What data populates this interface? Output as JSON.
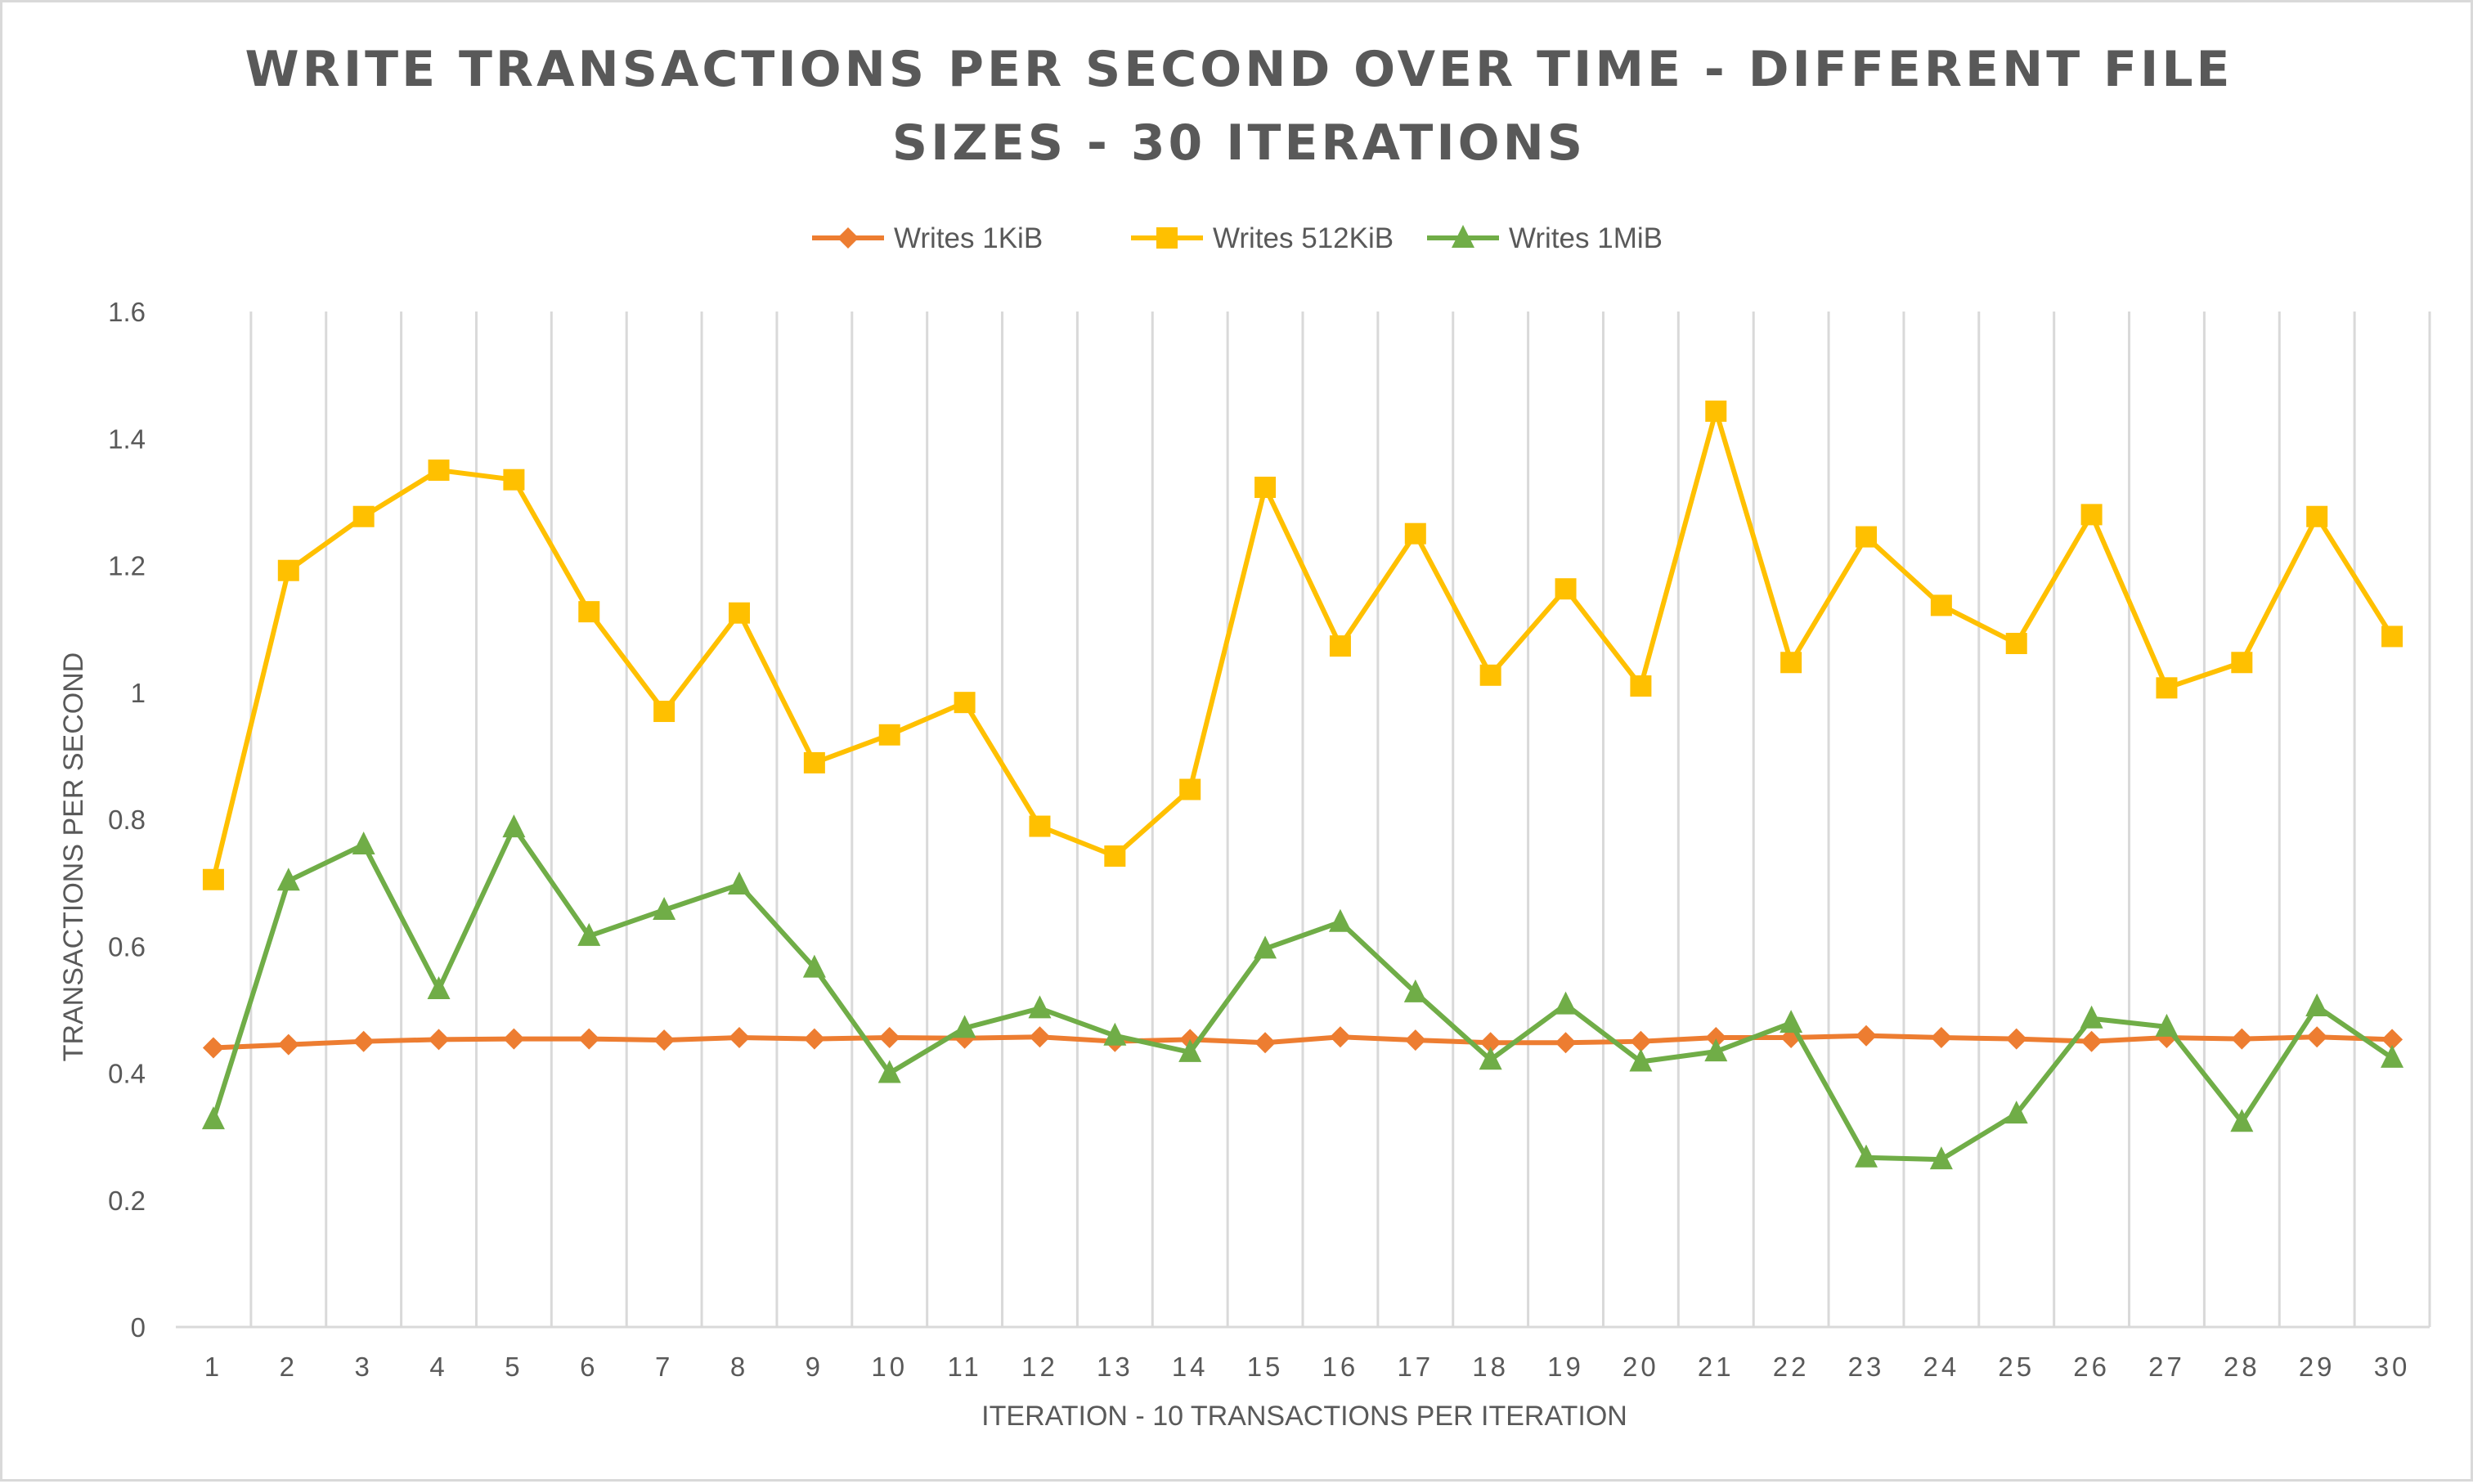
{
  "chart_data": {
    "type": "line",
    "title_line1": "WRITE TRANSACTIONS PER SECOND OVER TIME - DIFFERENT FILE",
    "title_line2": "SIZES - 30 ITERATIONS",
    "xlabel": "ITERATION - 10 TRANSACTIONS PER ITERATION",
    "ylabel": "TRANSACTIONS PER SECOND",
    "ylim": [
      0,
      1.6
    ],
    "yticks": [
      0,
      0.2,
      0.4,
      0.6,
      0.8,
      1,
      1.2,
      1.4,
      1.6
    ],
    "ytick_labels": [
      "0",
      "0.2",
      "0.4",
      "0.6",
      "0.8",
      "1",
      "1.2",
      "1.4",
      "1.6"
    ],
    "categories": [
      "1",
      "2",
      "3",
      "4",
      "5",
      "6",
      "7",
      "8",
      "9",
      "10",
      "11",
      "12",
      "13",
      "14",
      "15",
      "16",
      "17",
      "18",
      "19",
      "20",
      "21",
      "22",
      "23",
      "24",
      "25",
      "26",
      "27",
      "28",
      "29",
      "30"
    ],
    "grid": "vertical",
    "legend": "top-center",
    "series": [
      {
        "name": "Writes 1KiB",
        "color": "#ed7d31",
        "marker": "diamond",
        "values": [
          0.44,
          0.445,
          0.45,
          0.453,
          0.454,
          0.454,
          0.452,
          0.456,
          0.454,
          0.456,
          0.455,
          0.457,
          0.45,
          0.453,
          0.448,
          0.457,
          0.452,
          0.448,
          0.448,
          0.45,
          0.456,
          0.456,
          0.459,
          0.456,
          0.454,
          0.45,
          0.456,
          0.454,
          0.457,
          0.453
        ]
      },
      {
        "name": "Writes 512KiB",
        "color": "#ffc000",
        "marker": "square",
        "values": [
          0.705,
          1.192,
          1.277,
          1.35,
          1.335,
          1.127,
          0.97,
          1.125,
          0.889,
          0.933,
          0.984,
          0.789,
          0.742,
          0.847,
          1.323,
          1.073,
          1.25,
          1.027,
          1.163,
          1.01,
          1.443,
          1.047,
          1.245,
          1.137,
          1.077,
          1.28,
          1.007,
          1.047,
          1.277,
          1.088
        ]
      },
      {
        "name": "Writes 1MiB",
        "color": "#70ad47",
        "marker": "triangle",
        "values": [
          0.327,
          0.703,
          0.76,
          0.532,
          0.787,
          0.616,
          0.657,
          0.697,
          0.566,
          0.4,
          0.471,
          0.502,
          0.459,
          0.433,
          0.596,
          0.638,
          0.527,
          0.421,
          0.508,
          0.418,
          0.434,
          0.479,
          0.267,
          0.264,
          0.336,
          0.486,
          0.473,
          0.323,
          0.505,
          0.424
        ]
      }
    ]
  }
}
